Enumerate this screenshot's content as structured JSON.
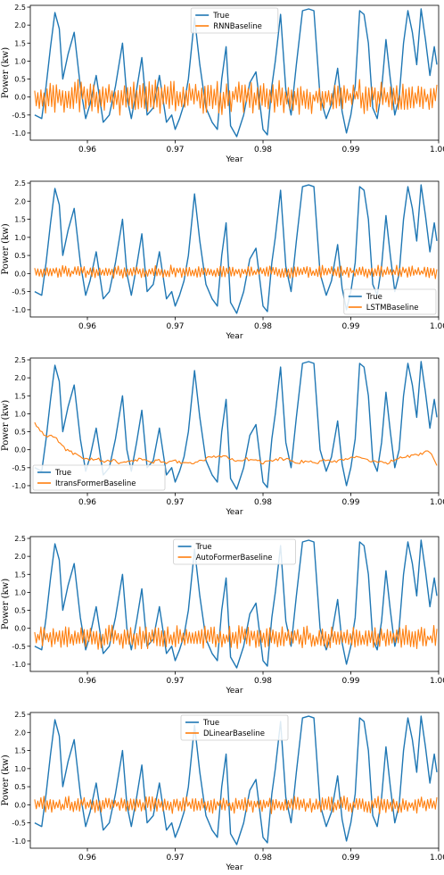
{
  "figure": {
    "colors": {
      "true": "#1f77b4",
      "baseline": "#ff7f0e",
      "axes": "#000000"
    }
  },
  "chart_data": [
    {
      "type": "line",
      "xlabel": "Year",
      "ylabel": "Power (kw)",
      "xlim": [
        0.9535,
        1.0
      ],
      "ylim": [
        -1.2,
        2.55
      ],
      "xticks": [
        0.96,
        0.97,
        0.98,
        0.99,
        1.0
      ],
      "xtick_labels": [
        "0.96",
        "0.97",
        "0.98",
        "0.99",
        "1.00"
      ],
      "yticks": [
        -1.0,
        -0.5,
        0.0,
        0.5,
        1.0,
        1.5,
        2.0,
        2.5
      ],
      "ytick_labels": [
        "-1.0",
        "-0.5",
        "0.0",
        "0.5",
        "1.0",
        "1.5",
        "2.0",
        "2.5"
      ],
      "legend_position": "upper-center",
      "true_series": {
        "name": "True",
        "x": [
          0.954,
          0.9548,
          0.9553,
          0.9558,
          0.9563,
          0.9568,
          0.9572,
          0.9578,
          0.9585,
          0.9592,
          0.9598,
          0.9603,
          0.961,
          0.9618,
          0.9625,
          0.9632,
          0.964,
          0.9645,
          0.965,
          0.9656,
          0.9662,
          0.9668,
          0.9675,
          0.9682,
          0.969,
          0.9696,
          0.97,
          0.9705,
          0.971,
          0.9715,
          0.9722,
          0.9728,
          0.9735,
          0.9742,
          0.9748,
          0.9753,
          0.9758,
          0.9763,
          0.977,
          0.9778,
          0.9785,
          0.9792,
          0.98,
          0.9805,
          0.981,
          0.9814,
          0.982,
          0.9826,
          0.9832,
          0.9838,
          0.9845,
          0.9852,
          0.9858,
          0.9865,
          0.9872,
          0.9878,
          0.9885,
          0.989,
          0.9895,
          0.99,
          0.9905,
          0.991,
          0.9915,
          0.992,
          0.9925,
          0.993,
          0.9935,
          0.994,
          0.9945,
          0.995,
          0.9955,
          0.996,
          0.9965,
          0.997,
          0.9975,
          0.998,
          0.9985,
          0.999,
          0.9995,
          0.9998
        ],
        "y": [
          -0.5,
          -0.6,
          0.3,
          1.4,
          2.35,
          1.9,
          0.5,
          1.2,
          1.8,
          0.3,
          -0.6,
          -0.2,
          0.6,
          -0.7,
          -0.5,
          0.3,
          1.5,
          0.0,
          -0.6,
          0.2,
          1.1,
          -0.5,
          -0.3,
          0.6,
          -0.7,
          -0.5,
          -0.9,
          -0.6,
          -0.2,
          0.5,
          2.2,
          0.9,
          -0.3,
          -0.7,
          -0.9,
          0.5,
          1.4,
          -0.8,
          -1.1,
          -0.5,
          0.4,
          0.7,
          -0.9,
          -1.05,
          0.3,
          1.0,
          2.3,
          0.2,
          -0.5,
          0.9,
          2.4,
          2.45,
          2.4,
          0.0,
          -0.6,
          -0.2,
          0.8,
          -0.4,
          -1.0,
          -0.5,
          0.3,
          2.4,
          2.3,
          1.5,
          -0.3,
          -0.6,
          0.2,
          1.6,
          0.5,
          -0.5,
          0.0,
          1.5,
          2.4,
          1.8,
          0.9,
          2.45,
          1.6,
          0.6,
          1.4,
          0.9
        ]
      },
      "baseline_series": {
        "name": "RNNBaseline",
        "mean": 0.0,
        "amplitude": 0.4
      }
    },
    {
      "type": "line",
      "xlabel": "Year",
      "ylabel": "Power (kw)",
      "xlim": [
        0.9535,
        1.0
      ],
      "ylim": [
        -1.2,
        2.55
      ],
      "xticks": [
        0.96,
        0.97,
        0.98,
        0.99,
        1.0
      ],
      "xtick_labels": [
        "0.96",
        "0.97",
        "0.98",
        "0.99",
        "1.00"
      ],
      "yticks": [
        -1.0,
        -0.5,
        0.0,
        0.5,
        1.0,
        1.5,
        2.0,
        2.5
      ],
      "ytick_labels": [
        "-1.0",
        "-0.5",
        "0.0",
        "0.5",
        "1.0",
        "1.5",
        "2.0",
        "2.5"
      ],
      "legend_position": "lower-right",
      "true_series": {
        "name": "True",
        "x": [
          0.954,
          0.9548,
          0.9553,
          0.9558,
          0.9563,
          0.9568,
          0.9572,
          0.9578,
          0.9585,
          0.9592,
          0.9598,
          0.9603,
          0.961,
          0.9618,
          0.9625,
          0.9632,
          0.964,
          0.9645,
          0.965,
          0.9656,
          0.9662,
          0.9668,
          0.9675,
          0.9682,
          0.969,
          0.9696,
          0.97,
          0.9705,
          0.971,
          0.9715,
          0.9722,
          0.9728,
          0.9735,
          0.9742,
          0.9748,
          0.9753,
          0.9758,
          0.9763,
          0.977,
          0.9778,
          0.9785,
          0.9792,
          0.98,
          0.9805,
          0.981,
          0.9814,
          0.982,
          0.9826,
          0.9832,
          0.9838,
          0.9845,
          0.9852,
          0.9858,
          0.9865,
          0.9872,
          0.9878,
          0.9885,
          0.989,
          0.9895,
          0.99,
          0.9905,
          0.991,
          0.9915,
          0.992,
          0.9925,
          0.993,
          0.9935,
          0.994,
          0.9945,
          0.995,
          0.9955,
          0.996,
          0.9965,
          0.997,
          0.9975,
          0.998,
          0.9985,
          0.999,
          0.9995,
          0.9998
        ],
        "y": [
          -0.5,
          -0.6,
          0.3,
          1.4,
          2.35,
          1.9,
          0.5,
          1.2,
          1.8,
          0.3,
          -0.6,
          -0.2,
          0.6,
          -0.7,
          -0.5,
          0.3,
          1.5,
          0.0,
          -0.6,
          0.2,
          1.1,
          -0.5,
          -0.3,
          0.6,
          -0.7,
          -0.5,
          -0.9,
          -0.6,
          -0.2,
          0.5,
          2.2,
          0.9,
          -0.3,
          -0.7,
          -0.9,
          0.5,
          1.4,
          -0.8,
          -1.1,
          -0.5,
          0.4,
          0.7,
          -0.9,
          -1.05,
          0.3,
          1.0,
          2.3,
          0.2,
          -0.5,
          0.9,
          2.4,
          2.45,
          2.4,
          0.0,
          -0.6,
          -0.2,
          0.8,
          -0.4,
          -1.0,
          -0.5,
          0.3,
          2.4,
          2.3,
          1.5,
          -0.3,
          -0.6,
          0.2,
          1.6,
          0.5,
          -0.5,
          0.0,
          1.5,
          2.4,
          1.8,
          0.9,
          2.45,
          1.6,
          0.6,
          1.4,
          0.9
        ]
      },
      "baseline_series": {
        "name": "LSTMBaseline",
        "mean": 0.05,
        "amplitude": 0.15
      }
    },
    {
      "type": "line",
      "xlabel": "Year",
      "ylabel": "Power (kw)",
      "xlim": [
        0.9535,
        1.0
      ],
      "ylim": [
        -1.2,
        2.55
      ],
      "xticks": [
        0.96,
        0.97,
        0.98,
        0.99,
        1.0
      ],
      "xtick_labels": [
        "0.96",
        "0.97",
        "0.98",
        "0.99",
        "1.00"
      ],
      "yticks": [
        -1.0,
        -0.5,
        0.0,
        0.5,
        1.0,
        1.5,
        2.0,
        2.5
      ],
      "ytick_labels": [
        "-1.0",
        "-0.5",
        "0.0",
        "0.5",
        "1.0",
        "1.5",
        "2.0",
        "2.5"
      ],
      "legend_position": "lower-left",
      "true_series": {
        "name": "True",
        "x": [
          0.954,
          0.9548,
          0.9553,
          0.9558,
          0.9563,
          0.9568,
          0.9572,
          0.9578,
          0.9585,
          0.9592,
          0.9598,
          0.9603,
          0.961,
          0.9618,
          0.9625,
          0.9632,
          0.964,
          0.9645,
          0.965,
          0.9656,
          0.9662,
          0.9668,
          0.9675,
          0.9682,
          0.969,
          0.9696,
          0.97,
          0.9705,
          0.971,
          0.9715,
          0.9722,
          0.9728,
          0.9735,
          0.9742,
          0.9748,
          0.9753,
          0.9758,
          0.9763,
          0.977,
          0.9778,
          0.9785,
          0.9792,
          0.98,
          0.9805,
          0.981,
          0.9814,
          0.982,
          0.9826,
          0.9832,
          0.9838,
          0.9845,
          0.9852,
          0.9858,
          0.9865,
          0.9872,
          0.9878,
          0.9885,
          0.989,
          0.9895,
          0.99,
          0.9905,
          0.991,
          0.9915,
          0.992,
          0.9925,
          0.993,
          0.9935,
          0.994,
          0.9945,
          0.995,
          0.9955,
          0.996,
          0.9965,
          0.997,
          0.9975,
          0.998,
          0.9985,
          0.999,
          0.9995,
          0.9998
        ],
        "y": [
          -0.5,
          -0.6,
          0.3,
          1.4,
          2.35,
          1.9,
          0.5,
          1.2,
          1.8,
          0.3,
          -0.6,
          -0.2,
          0.6,
          -0.7,
          -0.5,
          0.3,
          1.5,
          0.0,
          -0.6,
          0.2,
          1.1,
          -0.5,
          -0.3,
          0.6,
          -0.7,
          -0.5,
          -0.9,
          -0.6,
          -0.2,
          0.5,
          2.2,
          0.9,
          -0.3,
          -0.7,
          -0.9,
          0.5,
          1.4,
          -0.8,
          -1.1,
          -0.5,
          0.4,
          0.7,
          -0.9,
          -1.05,
          0.3,
          1.0,
          2.3,
          0.2,
          -0.5,
          0.9,
          2.4,
          2.45,
          2.4,
          0.0,
          -0.6,
          -0.2,
          0.8,
          -0.4,
          -1.0,
          -0.5,
          0.3,
          2.4,
          2.3,
          1.5,
          -0.3,
          -0.6,
          0.2,
          1.6,
          0.5,
          -0.5,
          0.0,
          1.5,
          2.4,
          1.8,
          0.9,
          2.45,
          1.6,
          0.6,
          1.4,
          0.9
        ]
      },
      "baseline_series": {
        "name": "ItransFormerBaseline",
        "x": [
          0.954,
          0.9545,
          0.955,
          0.9555,
          0.956,
          0.9565,
          0.957,
          0.958,
          0.959,
          0.96,
          0.961,
          0.962,
          0.963,
          0.964,
          0.965,
          0.966,
          0.967,
          0.968,
          0.969,
          0.97,
          0.971,
          0.972,
          0.973,
          0.974,
          0.975,
          0.976,
          0.977,
          0.978,
          0.979,
          0.98,
          0.981,
          0.982,
          0.983,
          0.984,
          0.985,
          0.986,
          0.987,
          0.988,
          0.989,
          0.99,
          0.991,
          0.992,
          0.993,
          0.994,
          0.995,
          0.996,
          0.997,
          0.998,
          0.999,
          0.9998
        ],
        "y": [
          0.75,
          0.6,
          0.45,
          0.4,
          0.42,
          0.3,
          0.1,
          -0.05,
          -0.2,
          -0.3,
          -0.25,
          -0.35,
          -0.3,
          -0.4,
          -0.3,
          -0.25,
          -0.35,
          -0.3,
          -0.35,
          -0.3,
          -0.4,
          -0.35,
          -0.3,
          -0.2,
          -0.15,
          -0.2,
          -0.3,
          -0.25,
          -0.3,
          -0.35,
          -0.3,
          -0.25,
          -0.3,
          -0.35,
          -0.3,
          -0.35,
          -0.3,
          -0.35,
          -0.3,
          -0.25,
          -0.2,
          -0.3,
          -0.35,
          -0.4,
          -0.25,
          -0.2,
          -0.15,
          -0.1,
          -0.05,
          -0.4
        ],
        "noise": 0.05
      }
    },
    {
      "type": "line",
      "xlabel": "Year",
      "ylabel": "Power (kw)",
      "xlim": [
        0.9535,
        1.0
      ],
      "ylim": [
        -1.2,
        2.55
      ],
      "xticks": [
        0.96,
        0.97,
        0.98,
        0.99,
        1.0
      ],
      "xtick_labels": [
        "0.96",
        "0.97",
        "0.98",
        "0.99",
        "1.00"
      ],
      "yticks": [
        -1.0,
        -0.5,
        0.0,
        0.5,
        1.0,
        1.5,
        2.0,
        2.5
      ],
      "ytick_labels": [
        "-1.0",
        "-0.5",
        "0.0",
        "0.5",
        "1.0",
        "1.5",
        "2.0",
        "2.5"
      ],
      "legend_position": "upper-center",
      "true_series": {
        "name": "True",
        "x": [
          0.954,
          0.9548,
          0.9553,
          0.9558,
          0.9563,
          0.9568,
          0.9572,
          0.9578,
          0.9585,
          0.9592,
          0.9598,
          0.9603,
          0.961,
          0.9618,
          0.9625,
          0.9632,
          0.964,
          0.9645,
          0.965,
          0.9656,
          0.9662,
          0.9668,
          0.9675,
          0.9682,
          0.969,
          0.9696,
          0.97,
          0.9705,
          0.971,
          0.9715,
          0.9722,
          0.9728,
          0.9735,
          0.9742,
          0.9748,
          0.9753,
          0.9758,
          0.9763,
          0.977,
          0.9778,
          0.9785,
          0.9792,
          0.98,
          0.9805,
          0.981,
          0.9814,
          0.982,
          0.9826,
          0.9832,
          0.9838,
          0.9845,
          0.9852,
          0.9858,
          0.9865,
          0.9872,
          0.9878,
          0.9885,
          0.989,
          0.9895,
          0.99,
          0.9905,
          0.991,
          0.9915,
          0.992,
          0.9925,
          0.993,
          0.9935,
          0.994,
          0.9945,
          0.995,
          0.9955,
          0.996,
          0.9965,
          0.997,
          0.9975,
          0.998,
          0.9985,
          0.999,
          0.9995,
          0.9998
        ],
        "y": [
          -0.5,
          -0.6,
          0.3,
          1.4,
          2.35,
          1.9,
          0.5,
          1.2,
          1.8,
          0.3,
          -0.6,
          -0.2,
          0.6,
          -0.7,
          -0.5,
          0.3,
          1.5,
          0.0,
          -0.6,
          0.2,
          1.1,
          -0.5,
          -0.3,
          0.6,
          -0.7,
          -0.5,
          -0.9,
          -0.6,
          -0.2,
          0.5,
          2.2,
          0.9,
          -0.3,
          -0.7,
          -0.9,
          0.5,
          1.4,
          -0.8,
          -1.1,
          -0.5,
          0.4,
          0.7,
          -0.9,
          -1.05,
          0.3,
          1.0,
          2.3,
          0.2,
          -0.5,
          0.9,
          2.4,
          2.45,
          2.4,
          0.0,
          -0.6,
          -0.2,
          0.8,
          -0.4,
          -1.0,
          -0.5,
          0.3,
          2.4,
          2.3,
          1.5,
          -0.3,
          -0.6,
          0.2,
          1.6,
          0.5,
          -0.5,
          0.0,
          1.5,
          2.4,
          1.8,
          0.9,
          2.45,
          1.6,
          0.6,
          1.4,
          0.9
        ]
      },
      "baseline_series": {
        "name": "AutoFormerBaseline",
        "mean": -0.25,
        "amplitude": 0.28
      }
    },
    {
      "type": "line",
      "xlabel": "Year",
      "ylabel": "Power (kw)",
      "xlim": [
        0.9535,
        1.0
      ],
      "ylim": [
        -1.2,
        2.55
      ],
      "xticks": [
        0.96,
        0.97,
        0.98,
        0.99,
        1.0
      ],
      "xtick_labels": [
        "0.96",
        "0.97",
        "0.98",
        "0.99",
        "1.00"
      ],
      "yticks": [
        -1.0,
        -0.5,
        0.0,
        0.5,
        1.0,
        1.5,
        2.0,
        2.5
      ],
      "ytick_labels": [
        "-1.0",
        "-0.5",
        "0.0",
        "0.5",
        "1.0",
        "1.5",
        "2.0",
        "2.5"
      ],
      "legend_position": "upper-center",
      "true_series": {
        "name": "True",
        "x": [
          0.954,
          0.9548,
          0.9553,
          0.9558,
          0.9563,
          0.9568,
          0.9572,
          0.9578,
          0.9585,
          0.9592,
          0.9598,
          0.9603,
          0.961,
          0.9618,
          0.9625,
          0.9632,
          0.964,
          0.9645,
          0.965,
          0.9656,
          0.9662,
          0.9668,
          0.9675,
          0.9682,
          0.969,
          0.9696,
          0.97,
          0.9705,
          0.971,
          0.9715,
          0.9722,
          0.9728,
          0.9735,
          0.9742,
          0.9748,
          0.9753,
          0.9758,
          0.9763,
          0.977,
          0.9778,
          0.9785,
          0.9792,
          0.98,
          0.9805,
          0.981,
          0.9814,
          0.982,
          0.9826,
          0.9832,
          0.9838,
          0.9845,
          0.9852,
          0.9858,
          0.9865,
          0.9872,
          0.9878,
          0.9885,
          0.989,
          0.9895,
          0.99,
          0.9905,
          0.991,
          0.9915,
          0.992,
          0.9925,
          0.993,
          0.9935,
          0.994,
          0.9945,
          0.995,
          0.9955,
          0.996,
          0.9965,
          0.997,
          0.9975,
          0.998,
          0.9985,
          0.999,
          0.9995,
          0.9998
        ],
        "y": [
          -0.5,
          -0.6,
          0.3,
          1.4,
          2.35,
          1.9,
          0.5,
          1.2,
          1.8,
          0.3,
          -0.6,
          -0.2,
          0.6,
          -0.7,
          -0.5,
          0.3,
          1.5,
          0.0,
          -0.6,
          0.2,
          1.1,
          -0.5,
          -0.3,
          0.6,
          -0.7,
          -0.5,
          -0.9,
          -0.6,
          -0.2,
          0.5,
          2.2,
          0.9,
          -0.3,
          -0.7,
          -0.9,
          0.5,
          1.4,
          -0.8,
          -1.1,
          -0.5,
          0.4,
          0.7,
          -0.9,
          -1.05,
          0.3,
          1.0,
          2.3,
          0.2,
          -0.5,
          0.9,
          2.4,
          2.45,
          2.4,
          0.0,
          -0.6,
          -0.2,
          0.8,
          -0.4,
          -1.0,
          -0.5,
          0.3,
          2.4,
          2.3,
          1.5,
          -0.3,
          -0.6,
          0.2,
          1.6,
          0.5,
          -0.5,
          0.0,
          1.5,
          2.4,
          1.8,
          0.9,
          2.45,
          1.6,
          0.6,
          1.4,
          0.9
        ]
      },
      "baseline_series": {
        "name": "DLinearBaseline",
        "mean": 0.0,
        "amplitude": 0.2
      }
    }
  ]
}
